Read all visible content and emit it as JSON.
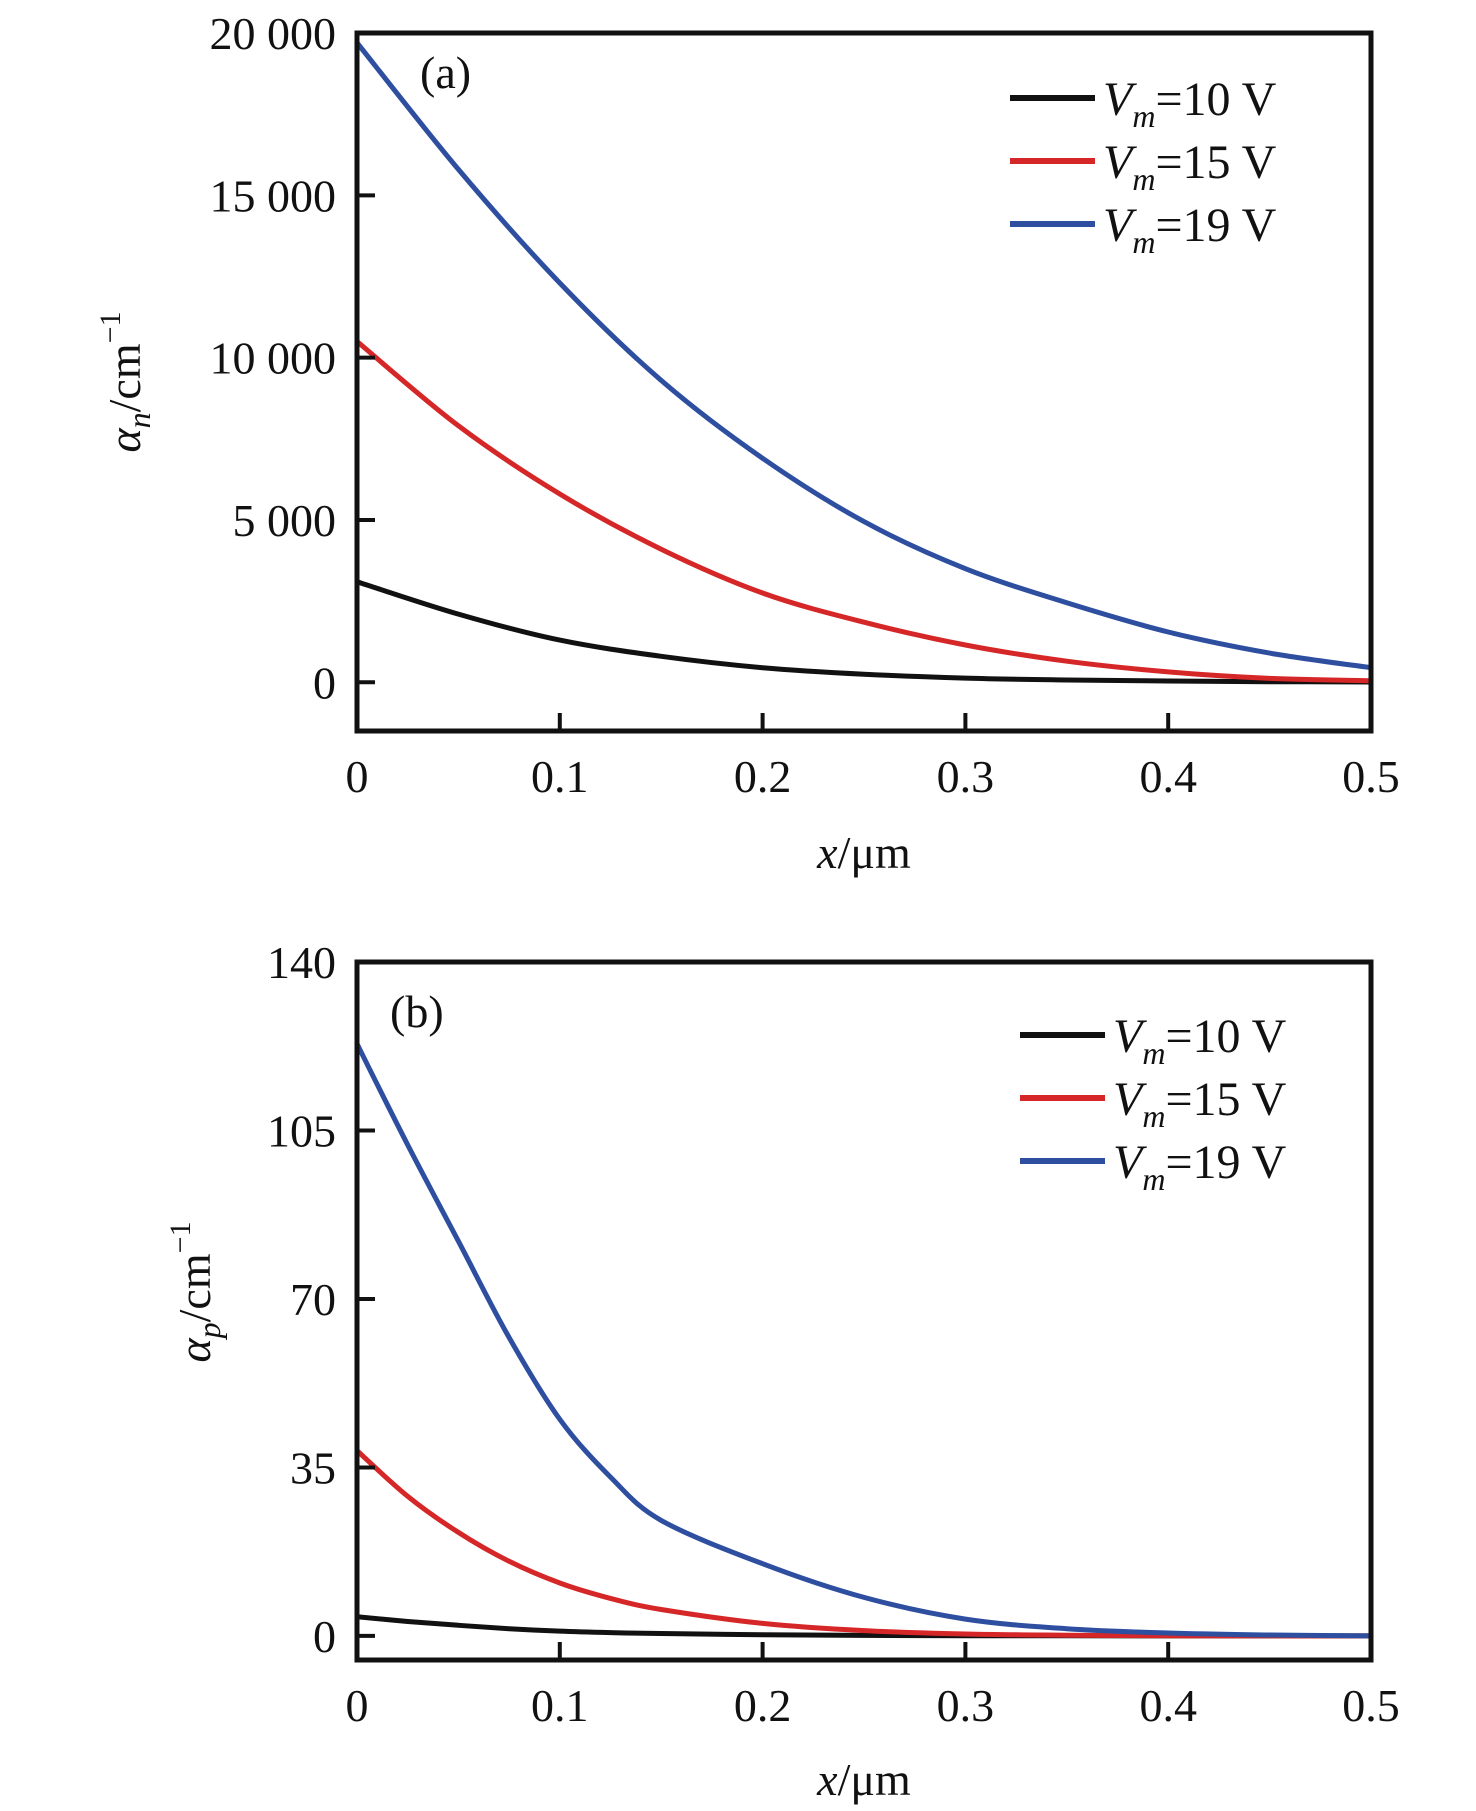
{
  "chart_data": [
    {
      "type": "line",
      "panel_label": "(a)",
      "xlabel": {
        "var": "x",
        "unit": "/μm"
      },
      "ylabel": {
        "var": "α",
        "sub": "n",
        "unit": "/cm",
        "sup": "−1"
      },
      "xlim": [
        0,
        0.5
      ],
      "ylim": [
        -1500,
        20000
      ],
      "xticks": [
        0,
        0.1,
        0.2,
        0.3,
        0.4,
        0.5
      ],
      "xtick_labels": [
        "0",
        "0.1",
        "0.2",
        "0.3",
        "0.4",
        "0.5"
      ],
      "yticks": [
        0,
        5000,
        10000,
        15000,
        20000
      ],
      "ytick_labels": [
        "0",
        "5 000",
        "10 000",
        "15 000",
        "20 000"
      ],
      "legend_position": "top-right",
      "grid": false,
      "x": [
        0,
        0.05,
        0.1,
        0.15,
        0.2,
        0.25,
        0.3,
        0.35,
        0.4,
        0.45,
        0.5
      ],
      "series": [
        {
          "name": {
            "var": "V",
            "sub": "m",
            "rest": "=10 V"
          },
          "color": "#111111",
          "values": [
            3100,
            2100,
            1300,
            800,
            450,
            250,
            130,
            70,
            40,
            20,
            10
          ]
        },
        {
          "name": {
            "var": "V",
            "sub": "m",
            "rest": "=15 V"
          },
          "color": "#d62728",
          "values": [
            10500,
            7900,
            5800,
            4100,
            2750,
            1850,
            1150,
            650,
            320,
            120,
            50
          ]
        },
        {
          "name": {
            "var": "V",
            "sub": "m",
            "rest": "=19 V"
          },
          "color": "#2e4ea0",
          "values": [
            19700,
            15800,
            12300,
            9300,
            6900,
            4950,
            3500,
            2450,
            1550,
            900,
            450
          ]
        }
      ]
    },
    {
      "type": "line",
      "panel_label": "(b)",
      "xlabel": {
        "var": "x",
        "unit": "/μm"
      },
      "ylabel": {
        "var": "α",
        "sub": "p",
        "unit": "/cm",
        "sup": "−1"
      },
      "xlim": [
        0,
        0.5
      ],
      "ylim": [
        -5,
        140
      ],
      "xticks": [
        0,
        0.1,
        0.2,
        0.3,
        0.4,
        0.5
      ],
      "xtick_labels": [
        "0",
        "0.1",
        "0.2",
        "0.3",
        "0.4",
        "0.5"
      ],
      "yticks": [
        0,
        35,
        70,
        105,
        140
      ],
      "ytick_labels": [
        "0",
        "35",
        "70",
        "105",
        "140"
      ],
      "legend_position": "top-right",
      "grid": false,
      "x": [
        0,
        0.025,
        0.05,
        0.075,
        0.1,
        0.125,
        0.15,
        0.2,
        0.25,
        0.3,
        0.35,
        0.4,
        0.45,
        0.5
      ],
      "series": [
        {
          "name": {
            "var": "V",
            "sub": "m",
            "rest": "=10 V"
          },
          "color": "#111111",
          "values": [
            4,
            3,
            2.2,
            1.5,
            1,
            0.7,
            0.5,
            0.25,
            0.1,
            0.05,
            0.02,
            0.01,
            0,
            0
          ]
        },
        {
          "name": {
            "var": "V",
            "sub": "m",
            "rest": "=15 V"
          },
          "color": "#d62728",
          "values": [
            38.5,
            29,
            21.5,
            15.5,
            11,
            7.8,
            5.5,
            2.6,
            1.1,
            0.4,
            0.15,
            0.05,
            0,
            0
          ]
        },
        {
          "name": {
            "var": "V",
            "sub": "m",
            "rest": "=19 V"
          },
          "color": "#2e4ea0",
          "values": [
            123,
            102,
            82,
            62,
            45,
            33,
            24,
            15,
            8,
            3.5,
            1.5,
            0.6,
            0.2,
            0
          ]
        }
      ]
    }
  ]
}
